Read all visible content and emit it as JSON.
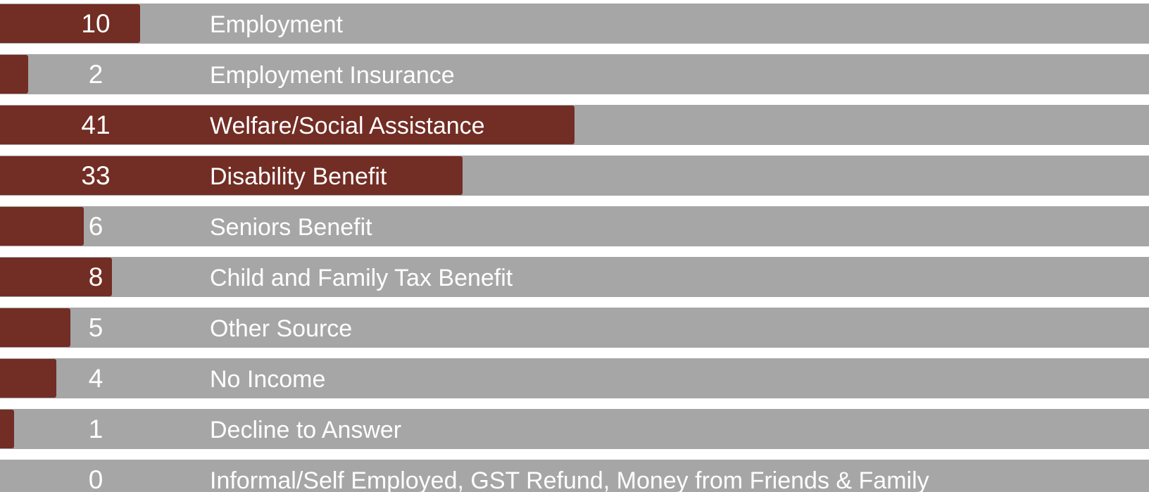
{
  "chart_data": {
    "type": "bar",
    "orientation": "horizontal",
    "categories": [
      "Employment",
      "Employment Insurance",
      "Welfare/Social Assistance",
      "Disability Benefit",
      "Seniors Benefit",
      "Child and Family Tax Benefit",
      "Other Source",
      "No Income",
      "Decline to Answer",
      "Informal/Self Employed, GST Refund, Money from Friends & Family"
    ],
    "values": [
      10,
      2,
      41,
      33,
      6,
      8,
      5,
      4,
      1,
      0
    ],
    "xlim": [
      0,
      82
    ],
    "grid": false,
    "legend": "none"
  },
  "colors": {
    "bar": "#722d24",
    "track": "#a6a6a6",
    "text": "#ffffff"
  }
}
